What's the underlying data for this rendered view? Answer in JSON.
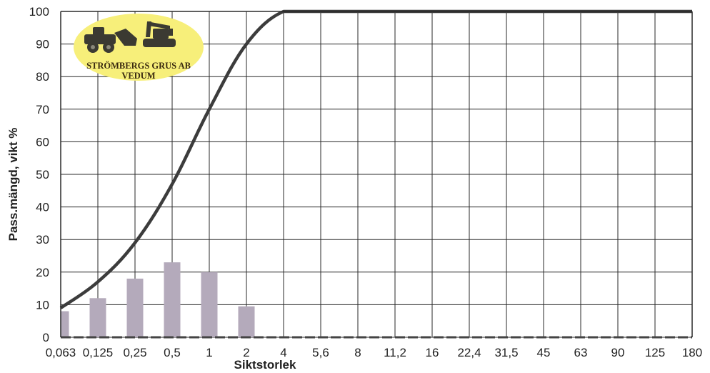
{
  "chart_data": {
    "type": "line",
    "xlabel": "Siktstorlek",
    "ylabel": "Pass.mängd, vikt %",
    "categories": [
      "0,063",
      "0,125",
      "0,25",
      "0,5",
      "1",
      "2",
      "4",
      "5,6",
      "8",
      "11,2",
      "16",
      "22,4",
      "31,5",
      "45",
      "63",
      "90",
      "125",
      "180"
    ],
    "y_ticks": [
      0,
      10,
      20,
      30,
      40,
      50,
      60,
      70,
      80,
      90,
      100
    ],
    "ylim": [
      0,
      100
    ],
    "grid": true,
    "series": [
      {
        "type": "line",
        "color": "#3c3c3c",
        "values": [
          9,
          17,
          29,
          47,
          70,
          90,
          100,
          100,
          100,
          100,
          100,
          100,
          100,
          100,
          100,
          100,
          100,
          100
        ]
      },
      {
        "type": "bar",
        "color": "#b4aabb",
        "values": [
          8,
          12,
          18,
          23,
          20,
          9.5,
          null,
          null,
          null,
          null,
          null,
          null,
          null,
          null,
          null,
          null,
          null,
          null
        ]
      }
    ]
  },
  "logo": {
    "line1": "STRÖMBERGS GRUS AB",
    "line2": "VEDUM",
    "bg_color": "#f7ef7a"
  }
}
